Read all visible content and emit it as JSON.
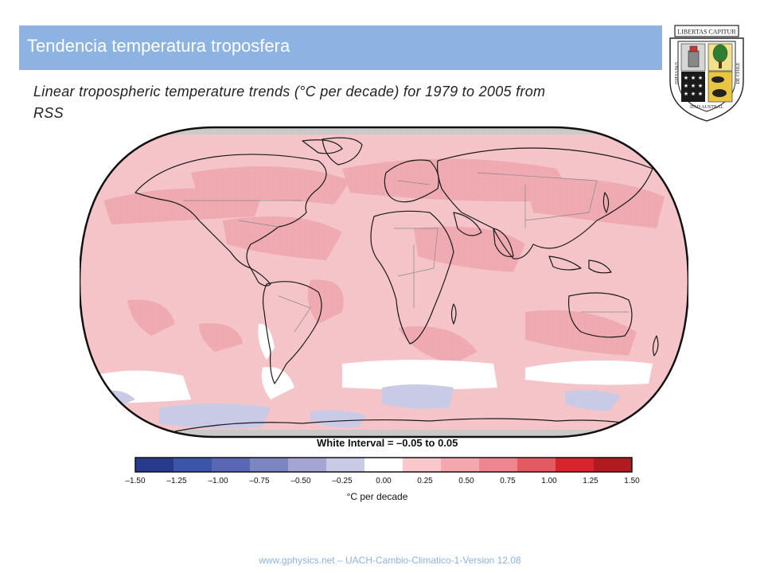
{
  "slide": {
    "title": "Tendencia temperatura troposfera",
    "subtitle": "Linear tropospheric temperature trends (°C per decade) for 1979 to 2005 from RSS",
    "footer": "www.gphysics.net – UACH-Cambio-Climatico-1-Version 12.08"
  },
  "logo": {
    "motto": "LIBERTAS CAPITUR",
    "left_text": "UNIVERSI",
    "bottom_text": "DAD AUSTRAL",
    "right_text": "DE CHILE"
  },
  "map": {
    "white_interval_label": "White Interval = –0.05 to 0.05"
  },
  "colorbar": {
    "ticks": [
      "–1.50",
      "–1.25",
      "–1.00",
      "–0.75",
      "–0.50",
      "–0.25",
      "0.00",
      "0.25",
      "0.50",
      "0.75",
      "1.00",
      "1.25",
      "1.50"
    ],
    "colors": [
      "#283a8c",
      "#3d55a8",
      "#5868b4",
      "#7d85c0",
      "#a3a6d2",
      "#c9cbe6",
      "#ffffff",
      "#f8c8cc",
      "#f4a7ae",
      "#ee868f",
      "#e45a62",
      "#d8252d",
      "#b21a22"
    ],
    "unit_label": "°C per decade"
  },
  "colors": {
    "title_bar": "#8db3e2",
    "map_base_pink": "#f4c4c8",
    "map_stronger_pink": "#efa9b0",
    "blue_patch": "#c8cae6"
  }
}
